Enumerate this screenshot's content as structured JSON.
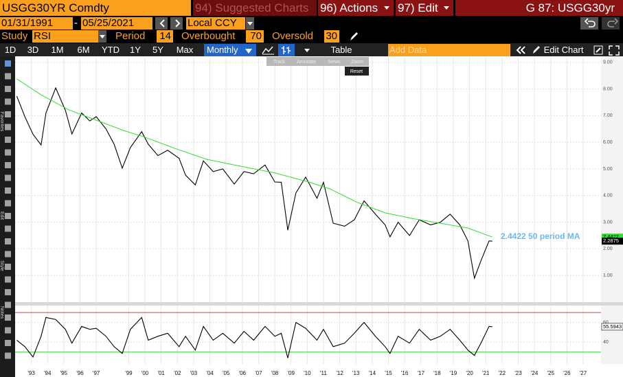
{
  "header": {
    "ticker": "USGG30YR Comdty",
    "suggested": "94) Suggested Charts",
    "actions": "96) Actions",
    "edit": "97) Edit",
    "page": "G 87: USGG30yr"
  },
  "range": {
    "start": "01/31/1991",
    "separator": "-",
    "end": "05/25/2021",
    "currency": "Local CCY"
  },
  "study": {
    "label": "Study",
    "name": "RSI",
    "period_label": "Period",
    "period": 14,
    "overbought_label": "Overbought",
    "overbought": 70,
    "oversold_label": "Oversold",
    "oversold": 30
  },
  "periods": [
    "1D",
    "3D",
    "1M",
    "6M",
    "YTD",
    "1Y",
    "5Y",
    "Max"
  ],
  "frequency": "Monthly",
  "table": "Table",
  "add_data": "Add Data",
  "edit_chart": "Edit Chart",
  "tools": [
    "Track",
    "Annotate",
    "News",
    "Zoom"
  ],
  "reset": "Reset",
  "sidebar": [
    "Favorites",
    "Edit",
    "Style",
    "Notes"
  ],
  "chart_data": [
    {
      "type": "line",
      "annotation": "50 period MA",
      "x": [
        1992.1,
        1992.6,
        1993.1,
        1993.6,
        1993.9,
        1994.5,
        1995.1,
        1995.5,
        1996.1,
        1996.6,
        1997.0,
        1997.6,
        1998.1,
        1998.6,
        1999.1,
        1999.8,
        2000.2,
        2000.8,
        2001.4,
        2002.1,
        2002.5,
        2003.1,
        2003.6,
        2004.2,
        2004.8,
        2005.5,
        2006.1,
        2006.7,
        2007.4,
        2008.0,
        2008.4,
        2008.8,
        2009.3,
        2009.9,
        2010.6,
        2011.0,
        2011.6,
        2012.3,
        2012.9,
        2013.5,
        2014.2,
        2014.8,
        2015.1,
        2015.6,
        2016.3,
        2016.9,
        2017.6,
        2018.2,
        2018.8,
        2019.4,
        2019.9,
        2020.3,
        2020.7,
        2021.2,
        2021.4
      ],
      "series": [
        {
          "color": "#000000",
          "values": [
            7.73,
            6.96,
            6.3,
            5.9,
            7.1,
            8.04,
            7.2,
            6.31,
            7.1,
            6.8,
            6.96,
            6.5,
            5.93,
            5.03,
            5.8,
            6.4,
            5.93,
            5.5,
            5.7,
            5.4,
            4.77,
            4.4,
            5.3,
            4.9,
            5.0,
            4.43,
            4.9,
            4.82,
            5.15,
            4.51,
            4.5,
            2.7,
            4.1,
            4.69,
            3.9,
            4.5,
            2.96,
            2.85,
            3.09,
            3.8,
            3.3,
            2.9,
            2.45,
            3.0,
            2.5,
            3.09,
            2.9,
            3.0,
            3.3,
            2.9,
            2.3,
            0.9,
            1.55,
            2.3,
            2.2875
          ]
        },
        {
          "color": "#33dd33",
          "x": [
            1992.1,
            1993.6,
            1995.3,
            1997.0,
            1998.7,
            2000.0,
            2001.7,
            2003.8,
            2005.9,
            2008.0,
            2010.1,
            2011.4,
            2013.1,
            2014.8,
            2016.5,
            2018.2,
            2019.9,
            2021.4
          ],
          "values": [
            8.38,
            7.78,
            7.22,
            6.83,
            6.44,
            6.19,
            5.8,
            5.36,
            5.1,
            4.85,
            4.51,
            4.25,
            3.74,
            3.35,
            3.14,
            2.96,
            2.78,
            2.4422
          ]
        }
      ],
      "xlim": [
        1992.0,
        2028.1
      ],
      "ylim": [
        0,
        9.2
      ],
      "yticks": [
        {
          "value": 1,
          "label": "1.00"
        },
        {
          "value": 2,
          "label": "2.00"
        },
        {
          "value": 3,
          "label": "3.00"
        },
        {
          "value": 4,
          "label": "4.00"
        },
        {
          "value": 5,
          "label": "5.00"
        },
        {
          "value": 6,
          "label": "6.00"
        },
        {
          "value": 7,
          "label": "7.00"
        },
        {
          "value": 8,
          "label": "8.00"
        },
        {
          "value": 9,
          "label": "9.00"
        }
      ],
      "grid": true
    },
    {
      "type": "line",
      "x": [
        1992.1,
        1992.6,
        1993.1,
        1993.6,
        1993.9,
        1994.5,
        1995.1,
        1995.5,
        1996.1,
        1996.6,
        1997.0,
        1997.6,
        1998.1,
        1998.6,
        1999.1,
        1999.8,
        2000.2,
        2000.8,
        2001.4,
        2002.1,
        2002.5,
        2003.1,
        2003.6,
        2004.2,
        2004.8,
        2005.5,
        2006.1,
        2006.7,
        2007.4,
        2008.0,
        2008.4,
        2008.8,
        2009.3,
        2009.9,
        2010.6,
        2011.0,
        2011.6,
        2012.3,
        2012.9,
        2013.5,
        2014.2,
        2014.8,
        2015.1,
        2015.6,
        2016.3,
        2016.9,
        2017.6,
        2018.2,
        2018.8,
        2019.4,
        2019.9,
        2020.3,
        2020.7,
        2021.2,
        2021.4
      ],
      "series": [
        {
          "color": "#000000",
          "values": [
            42,
            35.5,
            25,
            46,
            65,
            63,
            53,
            39,
            56,
            53,
            54,
            46,
            35.5,
            28.6,
            53,
            65,
            42,
            46,
            49,
            35.5,
            46,
            32,
            56,
            42,
            49,
            39,
            51,
            42,
            56,
            46,
            49,
            24,
            60,
            54,
            42,
            53,
            35.5,
            39,
            49,
            60,
            46,
            35.5,
            28.6,
            46,
            39,
            53,
            42,
            46,
            53,
            42,
            32,
            26.6,
            39,
            56,
            55.5943
          ]
        }
      ],
      "xlim": [
        1992.0,
        2028.1
      ],
      "ylim": [
        18,
        77
      ],
      "yticks": [
        40,
        60
      ],
      "xticks": [
        {
          "value": 1993,
          "label": "'93"
        },
        {
          "value": 1994,
          "label": "'94"
        },
        {
          "value": 1995,
          "label": "'95"
        },
        {
          "value": 1996,
          "label": "'96"
        },
        {
          "value": 1997,
          "label": "'97"
        },
        {
          "value": 1999,
          "label": "'99"
        },
        {
          "value": 2000,
          "label": "'00"
        },
        {
          "value": 2001,
          "label": "'01"
        },
        {
          "value": 2002,
          "label": "'02"
        },
        {
          "value": 2003,
          "label": "'03"
        },
        {
          "value": 2004,
          "label": "'04"
        },
        {
          "value": 2005,
          "label": "'05"
        },
        {
          "value": 2006,
          "label": "'06"
        },
        {
          "value": 2007,
          "label": "'07"
        },
        {
          "value": 2008,
          "label": "'08"
        },
        {
          "value": 2009,
          "label": "'09"
        },
        {
          "value": 2010,
          "label": "'10"
        },
        {
          "value": 2011,
          "label": "'11"
        },
        {
          "value": 2012,
          "label": "'12"
        },
        {
          "value": 2013,
          "label": "'13"
        },
        {
          "value": 2014,
          "label": "'14"
        },
        {
          "value": 2015,
          "label": "'15"
        },
        {
          "value": 2016,
          "label": "'16"
        },
        {
          "value": 2017,
          "label": "'17"
        },
        {
          "value": 2018,
          "label": "'18"
        },
        {
          "value": 2019,
          "label": "'19"
        },
        {
          "value": 2020,
          "label": "'20"
        },
        {
          "value": 2021,
          "label": "'21"
        },
        {
          "value": 2022,
          "label": "'22"
        },
        {
          "value": 2023,
          "label": "'23"
        },
        {
          "value": 2024,
          "label": "'24"
        },
        {
          "value": 2025,
          "label": "'25"
        },
        {
          "value": 2026,
          "label": "'26"
        },
        {
          "value": 2027,
          "label": "'27"
        }
      ]
    }
  ]
}
